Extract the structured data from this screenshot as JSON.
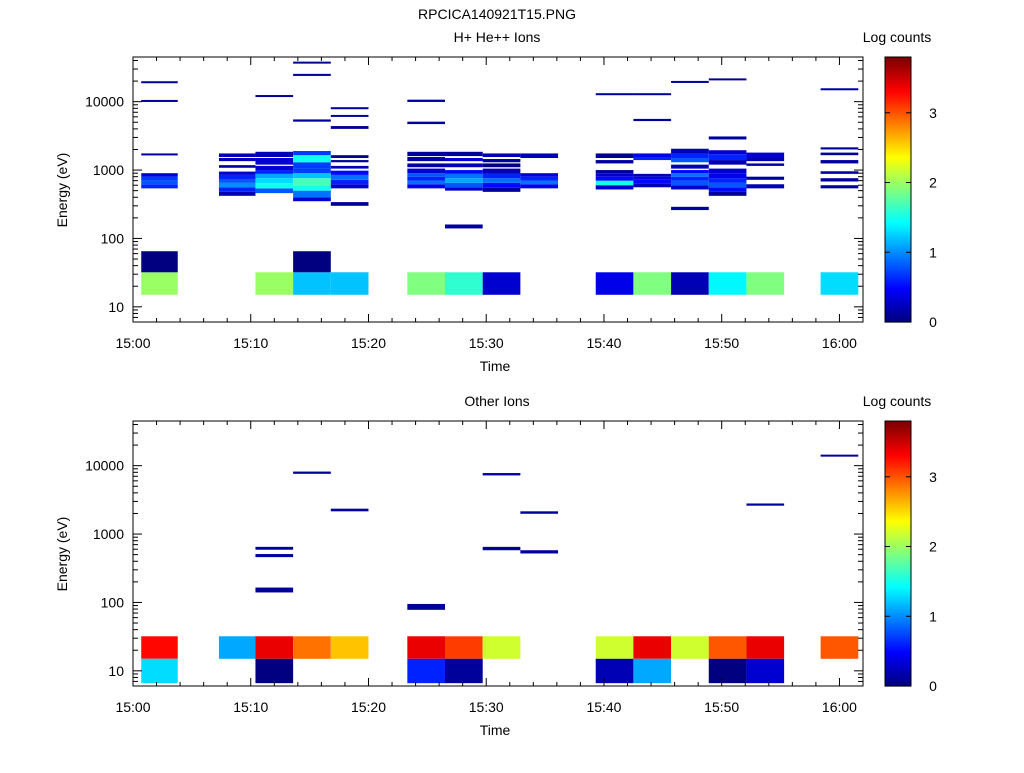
{
  "figure_title": "RPCICA140921T15.PNG",
  "colorbar": {
    "label": "Log counts",
    "ticks": [
      0,
      1,
      2,
      3
    ],
    "range": [
      0,
      3.8
    ]
  },
  "chart_data": [
    {
      "type": "heatmap",
      "title": "H+ He++ Ions",
      "xlabel": "Time",
      "ylabel": "Energy (eV)",
      "x_ticks": [
        "15:00",
        "15:10",
        "15:20",
        "15:30",
        "15:40",
        "15:50",
        "16:00"
      ],
      "y_ticks": [
        "10",
        "100",
        "1000",
        "10000"
      ],
      "y_scale": "log",
      "xlim_min": [
        0,
        62
      ],
      "ylim": [
        6,
        45000
      ],
      "cells": [
        [
          0.7,
          3.8,
          15,
          32,
          2.0
        ],
        [
          0.7,
          3.8,
          32,
          65,
          0.0
        ],
        [
          0.7,
          3.8,
          540,
          620,
          0.6
        ],
        [
          0.7,
          3.8,
          620,
          700,
          0.8
        ],
        [
          0.7,
          3.8,
          700,
          800,
          0.7
        ],
        [
          0.7,
          3.8,
          800,
          900,
          0.3
        ],
        [
          0.7,
          3.8,
          1650,
          1750,
          0.1
        ],
        [
          0.7,
          3.8,
          9900,
          10600,
          0.1
        ],
        [
          0.7,
          3.8,
          18900,
          19900,
          0.1
        ],
        [
          7.3,
          10.4,
          420,
          480,
          0.2
        ],
        [
          7.3,
          10.4,
          480,
          560,
          0.6
        ],
        [
          7.3,
          10.4,
          560,
          650,
          1.0
        ],
        [
          7.3,
          10.4,
          650,
          740,
          0.8
        ],
        [
          7.3,
          10.4,
          740,
          850,
          0.6
        ],
        [
          7.3,
          10.4,
          850,
          950,
          0.3
        ],
        [
          7.3,
          10.4,
          1080,
          1180,
          0.1
        ],
        [
          7.3,
          10.4,
          1350,
          1500,
          0.2
        ],
        [
          7.3,
          10.4,
          1550,
          1750,
          0.2
        ],
        [
          10.4,
          13.6,
          15,
          32,
          2.0
        ],
        [
          10.4,
          13.6,
          460,
          540,
          0.8
        ],
        [
          10.4,
          13.6,
          540,
          640,
          1.5
        ],
        [
          10.4,
          13.6,
          640,
          760,
          1.3
        ],
        [
          10.4,
          13.6,
          760,
          880,
          1.1
        ],
        [
          10.4,
          13.6,
          880,
          1000,
          0.6
        ],
        [
          10.4,
          13.6,
          1000,
          1150,
          0.3
        ],
        [
          10.4,
          13.6,
          1200,
          1500,
          0.3
        ],
        [
          10.4,
          13.6,
          1550,
          1850,
          0.2
        ],
        [
          10.4,
          13.6,
          11700,
          12500,
          0.1
        ],
        [
          13.6,
          16.8,
          15,
          32,
          1.2
        ],
        [
          13.6,
          16.8,
          32,
          65,
          0.0
        ],
        [
          13.6,
          16.8,
          350,
          400,
          0.3
        ],
        [
          13.6,
          16.8,
          400,
          500,
          0.9
        ],
        [
          13.6,
          16.8,
          500,
          600,
          1.5
        ],
        [
          13.6,
          16.8,
          600,
          760,
          1.7
        ],
        [
          13.6,
          16.8,
          760,
          900,
          1.2
        ],
        [
          13.6,
          16.8,
          900,
          1050,
          0.7
        ],
        [
          13.6,
          16.8,
          1050,
          1300,
          0.7
        ],
        [
          13.6,
          16.8,
          1300,
          1650,
          1.5
        ],
        [
          13.6,
          16.8,
          1650,
          1900,
          0.7
        ],
        [
          13.6,
          16.8,
          5100,
          5500,
          0.1
        ],
        [
          13.6,
          16.8,
          23800,
          25500,
          0.1
        ],
        [
          13.6,
          16.8,
          36000,
          38500,
          0.1
        ],
        [
          16.8,
          20.0,
          15,
          32,
          1.2
        ],
        [
          16.8,
          20.0,
          300,
          340,
          0.1
        ],
        [
          16.8,
          20.0,
          540,
          620,
          0.3
        ],
        [
          16.8,
          20.0,
          620,
          720,
          0.6
        ],
        [
          16.8,
          20.0,
          720,
          850,
          0.9
        ],
        [
          16.8,
          20.0,
          850,
          980,
          0.5
        ],
        [
          16.8,
          20.0,
          1050,
          1150,
          0.2
        ],
        [
          16.8,
          20.0,
          1300,
          1400,
          0.1
        ],
        [
          16.8,
          20.0,
          1500,
          1650,
          0.1
        ],
        [
          16.8,
          20.0,
          4000,
          4400,
          0.1
        ],
        [
          16.8,
          20.0,
          6000,
          6400,
          0.1
        ],
        [
          16.8,
          20.0,
          7800,
          8300,
          0.1
        ],
        [
          23.3,
          26.5,
          15,
          32,
          1.9
        ],
        [
          23.3,
          26.5,
          540,
          620,
          0.4
        ],
        [
          23.3,
          26.5,
          620,
          700,
          0.9
        ],
        [
          23.3,
          26.5,
          700,
          800,
          0.6
        ],
        [
          23.3,
          26.5,
          800,
          900,
          0.8
        ],
        [
          23.3,
          26.5,
          900,
          1050,
          0.3
        ],
        [
          23.3,
          26.5,
          1100,
          1250,
          0.1
        ],
        [
          23.3,
          26.5,
          1350,
          1550,
          0.1
        ],
        [
          23.3,
          26.5,
          1600,
          1850,
          0.1
        ],
        [
          23.3,
          26.5,
          4700,
          5100,
          0.1
        ],
        [
          23.3,
          26.5,
          9900,
          10700,
          0.1
        ],
        [
          26.5,
          29.7,
          15,
          32,
          1.6
        ],
        [
          26.5,
          29.7,
          140,
          160,
          0.1
        ],
        [
          26.5,
          29.7,
          500,
          560,
          0.3
        ],
        [
          26.5,
          29.7,
          560,
          650,
          0.8
        ],
        [
          26.5,
          29.7,
          650,
          760,
          1.1
        ],
        [
          26.5,
          29.7,
          760,
          880,
          0.9
        ],
        [
          26.5,
          29.7,
          880,
          1000,
          0.5
        ],
        [
          26.5,
          29.7,
          1100,
          1250,
          0.2
        ],
        [
          26.5,
          29.7,
          1350,
          1500,
          0.3
        ],
        [
          26.5,
          29.7,
          1600,
          1850,
          0.1
        ],
        [
          29.7,
          32.9,
          15,
          32,
          0.3
        ],
        [
          29.7,
          32.9,
          480,
          550,
          0.1
        ],
        [
          29.7,
          32.9,
          550,
          650,
          0.5
        ],
        [
          29.7,
          32.9,
          650,
          760,
          0.9
        ],
        [
          29.7,
          32.9,
          760,
          880,
          0.6
        ],
        [
          29.7,
          32.9,
          880,
          1050,
          0.2
        ],
        [
          29.7,
          32.9,
          1100,
          1250,
          0.0
        ],
        [
          29.7,
          32.9,
          1300,
          1450,
          0.1
        ],
        [
          29.7,
          32.9,
          1550,
          1750,
          0.2
        ],
        [
          32.9,
          36.1,
          540,
          620,
          0.4
        ],
        [
          32.9,
          36.1,
          620,
          700,
          0.9
        ],
        [
          32.9,
          36.1,
          700,
          800,
          0.6
        ],
        [
          32.9,
          36.1,
          800,
          900,
          0.3
        ],
        [
          32.9,
          36.1,
          1500,
          1750,
          0.2
        ],
        [
          39.3,
          42.5,
          15,
          32,
          0.4
        ],
        [
          39.3,
          42.5,
          520,
          600,
          0.3
        ],
        [
          39.3,
          42.5,
          600,
          700,
          1.5
        ],
        [
          39.3,
          42.5,
          700,
          800,
          0.5
        ],
        [
          39.3,
          42.5,
          800,
          900,
          0.3
        ],
        [
          39.3,
          42.5,
          900,
          1000,
          0.1
        ],
        [
          39.3,
          42.5,
          1250,
          1400,
          0.1
        ],
        [
          39.3,
          42.5,
          1500,
          1750,
          0.1
        ],
        [
          39.3,
          42.5,
          12500,
          13300,
          0.1
        ],
        [
          42.5,
          45.7,
          15,
          32,
          1.9
        ],
        [
          42.5,
          45.7,
          560,
          640,
          0.2
        ],
        [
          42.5,
          45.7,
          640,
          720,
          0.5
        ],
        [
          42.5,
          45.7,
          720,
          800,
          0.4
        ],
        [
          42.5,
          45.7,
          800,
          880,
          0.2
        ],
        [
          42.5,
          45.7,
          1400,
          1550,
          0.6
        ],
        [
          42.5,
          45.7,
          1550,
          1750,
          0.4
        ],
        [
          42.5,
          45.7,
          5200,
          5600,
          0.1
        ],
        [
          42.5,
          45.7,
          12500,
          13300,
          0.1
        ],
        [
          45.7,
          48.9,
          15,
          32,
          0.2
        ],
        [
          45.7,
          48.9,
          260,
          290,
          0.1
        ],
        [
          45.7,
          48.9,
          520,
          600,
          0.3
        ],
        [
          45.7,
          48.9,
          600,
          700,
          0.8
        ],
        [
          45.7,
          48.9,
          700,
          800,
          0.6
        ],
        [
          45.7,
          48.9,
          800,
          900,
          0.9
        ],
        [
          45.7,
          48.9,
          900,
          1000,
          0.5
        ],
        [
          45.7,
          48.9,
          1050,
          1200,
          0.2
        ],
        [
          45.7,
          48.9,
          1300,
          1500,
          0.8
        ],
        [
          45.7,
          48.9,
          1500,
          1750,
          0.6
        ],
        [
          45.7,
          48.9,
          1750,
          2050,
          0.2
        ],
        [
          45.7,
          48.9,
          18900,
          20100,
          0.1
        ],
        [
          48.9,
          52.1,
          15,
          32,
          1.4
        ],
        [
          48.9,
          52.1,
          420,
          480,
          0.1
        ],
        [
          48.9,
          52.1,
          480,
          560,
          0.5
        ],
        [
          48.9,
          52.1,
          560,
          650,
          0.8
        ],
        [
          48.9,
          52.1,
          650,
          760,
          0.6
        ],
        [
          48.9,
          52.1,
          760,
          900,
          0.4
        ],
        [
          48.9,
          52.1,
          900,
          1050,
          0.3
        ],
        [
          48.9,
          52.1,
          1200,
          1400,
          0.2
        ],
        [
          48.9,
          52.1,
          1400,
          1700,
          0.6
        ],
        [
          48.9,
          52.1,
          1700,
          1950,
          0.3
        ],
        [
          48.9,
          52.1,
          2800,
          3100,
          0.1
        ],
        [
          48.9,
          52.1,
          20600,
          21900,
          0.1
        ],
        [
          52.1,
          55.3,
          15,
          32,
          1.9
        ],
        [
          52.1,
          55.3,
          540,
          620,
          0.2
        ],
        [
          52.1,
          55.3,
          720,
          800,
          0.1
        ],
        [
          52.1,
          55.3,
          1150,
          1250,
          0.1
        ],
        [
          52.1,
          55.3,
          1350,
          1500,
          0.2
        ],
        [
          52.1,
          55.3,
          1500,
          1800,
          0.3
        ],
        [
          58.4,
          61.6,
          15,
          32,
          1.3
        ],
        [
          58.4,
          61.6,
          540,
          600,
          0.1
        ],
        [
          58.4,
          61.6,
          680,
          760,
          0.1
        ],
        [
          58.4,
          61.6,
          880,
          960,
          0.1
        ],
        [
          58.4,
          61.6,
          1250,
          1400,
          0.1
        ],
        [
          58.4,
          61.6,
          1650,
          1800,
          0.1
        ],
        [
          58.4,
          61.6,
          2000,
          2150,
          0.1
        ],
        [
          58.4,
          61.6,
          14700,
          15700,
          0.1
        ]
      ]
    },
    {
      "type": "heatmap",
      "title": "Other Ions",
      "xlabel": "Time",
      "ylabel": "Energy (eV)",
      "x_ticks": [
        "15:00",
        "15:10",
        "15:20",
        "15:30",
        "15:40",
        "15:50",
        "16:00"
      ],
      "y_ticks": [
        "10",
        "100",
        "1000",
        "10000"
      ],
      "y_scale": "log",
      "xlim_min": [
        0,
        62
      ],
      "ylim": [
        6,
        45000
      ],
      "cells": [
        [
          0.7,
          3.8,
          15,
          32,
          3.3
        ],
        [
          0.7,
          3.8,
          6.6,
          15,
          1.3
        ],
        [
          7.3,
          10.4,
          15,
          32,
          1.1
        ],
        [
          10.4,
          13.6,
          15,
          32,
          3.4
        ],
        [
          10.4,
          13.6,
          6.6,
          15,
          0.0
        ],
        [
          10.4,
          13.6,
          140,
          165,
          0.1
        ],
        [
          10.4,
          13.6,
          460,
          510,
          0.1
        ],
        [
          10.4,
          13.6,
          590,
          650,
          0.1
        ],
        [
          13.6,
          16.8,
          15,
          32,
          2.9
        ],
        [
          13.6,
          16.8,
          7600,
          8200,
          0.1
        ],
        [
          16.8,
          20.0,
          15,
          32,
          2.6
        ],
        [
          16.8,
          20.0,
          2150,
          2350,
          0.1
        ],
        [
          23.3,
          26.5,
          15,
          32,
          3.4
        ],
        [
          23.3,
          26.5,
          6.6,
          15,
          0.6
        ],
        [
          23.3,
          26.5,
          78,
          95,
          0.1
        ],
        [
          26.5,
          29.7,
          15,
          32,
          3.1
        ],
        [
          26.5,
          29.7,
          6.6,
          15,
          0.1
        ],
        [
          29.7,
          32.9,
          15,
          32,
          2.2
        ],
        [
          29.7,
          32.9,
          580,
          650,
          0.1
        ],
        [
          29.7,
          32.9,
          7200,
          7800,
          0.1
        ],
        [
          32.9,
          36.1,
          520,
          580,
          0.1
        ],
        [
          32.9,
          36.1,
          1980,
          2150,
          0.1
        ],
        [
          39.3,
          42.5,
          15,
          32,
          2.2
        ],
        [
          39.3,
          42.5,
          6.6,
          15,
          0.2
        ],
        [
          42.5,
          45.7,
          15,
          32,
          3.4
        ],
        [
          42.5,
          45.7,
          6.6,
          15,
          1.1
        ],
        [
          45.7,
          48.9,
          15,
          32,
          2.2
        ],
        [
          48.9,
          52.1,
          15,
          32,
          3.0
        ],
        [
          48.9,
          52.1,
          6.6,
          15,
          0.0
        ],
        [
          52.1,
          55.3,
          15,
          32,
          3.4
        ],
        [
          52.1,
          55.3,
          6.6,
          15,
          0.3
        ],
        [
          52.1,
          55.3,
          2600,
          2800,
          0.1
        ],
        [
          58.4,
          61.6,
          15,
          32,
          3.0
        ],
        [
          58.4,
          61.6,
          13600,
          14500,
          0.1
        ]
      ]
    }
  ]
}
